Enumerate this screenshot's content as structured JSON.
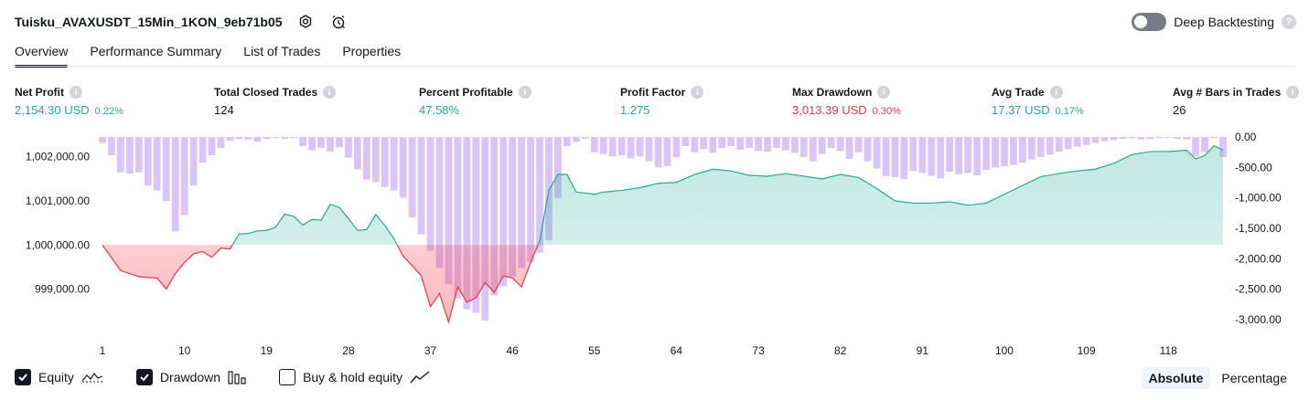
{
  "header": {
    "strategy_title": "Tuisku_AVAXUSDT_15Min_1KON_9eb71b05",
    "settings_icon": "settings-icon",
    "alert_icon": "alarm-icon",
    "deep_backtesting_label": "Deep Backtesting",
    "deep_backtesting_on": false,
    "help_mark": "?"
  },
  "tabs": [
    {
      "label": "Overview",
      "active": true
    },
    {
      "label": "Performance Summary",
      "active": false
    },
    {
      "label": "List of Trades",
      "active": false
    },
    {
      "label": "Properties",
      "active": false
    }
  ],
  "metrics": [
    {
      "label": "Net Profit",
      "value": "2,154.30 USD",
      "pct": "0.22%",
      "tone": "green"
    },
    {
      "label": "Total Closed Trades",
      "value": "124",
      "pct": "",
      "tone": "dark"
    },
    {
      "label": "Percent Profitable",
      "value": "47.58%",
      "pct": "",
      "tone": "green"
    },
    {
      "label": "Profit Factor",
      "value": "1.275",
      "pct": "",
      "tone": "green"
    },
    {
      "label": "Max Drawdown",
      "value": "3,013.39 USD",
      "pct": "0.30%",
      "tone": "red"
    },
    {
      "label": "Avg Trade",
      "value": "17.37 USD",
      "pct": "0.17%",
      "tone": "green"
    },
    {
      "label": "Avg # Bars in Trades",
      "value": "26",
      "pct": "",
      "tone": "dark"
    }
  ],
  "colors": {
    "profit": "#22ab94",
    "loss": "#f23645",
    "drawdown_bar": "#d7bff7",
    "equity_fill": "#d5efe9",
    "equity_fill_neg": "#fbd3d7"
  },
  "chart_data": {
    "type": "area",
    "x_ticks": [
      "1",
      "10",
      "19",
      "28",
      "37",
      "46",
      "55",
      "64",
      "73",
      "82",
      "91",
      "100",
      "109",
      "118"
    ],
    "left_axis": {
      "labels": [
        "1,002,000.00",
        "1,001,000.00",
        "1,000,000.00",
        "999,000.00"
      ],
      "ylim": [
        998100,
        1002450
      ],
      "baseline": 1000000
    },
    "right_axis": {
      "labels": [
        "0.00",
        "-500.00",
        "-1,000.00",
        "-1,500.00",
        "-2,000.00",
        "-2,500.00",
        "-3,000.00"
      ],
      "ylim": [
        -3150,
        0
      ]
    },
    "series": [
      {
        "name": "Equity",
        "x": [
          1,
          3,
          5,
          7,
          8,
          9,
          10,
          11,
          12,
          13,
          14,
          15,
          16,
          17,
          18,
          19,
          20,
          21,
          22,
          23,
          24,
          25,
          26,
          27,
          28,
          29,
          30,
          31,
          32,
          33,
          34,
          35,
          36,
          37,
          38,
          39,
          40,
          41,
          42,
          43,
          44,
          45,
          46,
          47,
          48,
          49,
          50,
          51,
          52,
          53,
          54,
          55,
          56,
          58,
          60,
          62,
          64,
          66,
          68,
          70,
          72,
          74,
          76,
          78,
          80,
          82,
          84,
          86,
          88,
          90,
          92,
          94,
          96,
          98,
          100,
          102,
          104,
          106,
          108,
          110,
          112,
          114,
          116,
          118,
          120,
          121,
          122,
          123,
          124
        ],
        "values": [
          1000000,
          999420,
          999280,
          999250,
          999000,
          999350,
          999600,
          999800,
          999850,
          999720,
          999930,
          999910,
          1000250,
          1000260,
          1000320,
          1000330,
          1000400,
          1000700,
          1000650,
          1000450,
          1000580,
          1000560,
          1000920,
          1000850,
          1000600,
          1000330,
          1000350,
          1000690,
          1000440,
          1000140,
          999750,
          999530,
          999300,
          998600,
          998900,
          998250,
          999050,
          998700,
          998800,
          999150,
          998920,
          999300,
          999250,
          999050,
          999600,
          1000100,
          1001250,
          1001600,
          1001600,
          1001200,
          1001180,
          1001150,
          1001200,
          1001240,
          1001300,
          1001400,
          1001420,
          1001600,
          1001720,
          1001680,
          1001580,
          1001560,
          1001620,
          1001560,
          1001500,
          1001600,
          1001530,
          1001280,
          1001000,
          1000950,
          1000950,
          1000980,
          1000900,
          1000950,
          1001150,
          1001350,
          1001550,
          1001620,
          1001680,
          1001720,
          1001850,
          1002050,
          1002120,
          1002120,
          1002150,
          1001950,
          1002030,
          1002250,
          1002154
        ]
      },
      {
        "name": "Drawdown",
        "x": [
          1,
          2,
          3,
          4,
          5,
          6,
          7,
          8,
          9,
          10,
          11,
          12,
          13,
          14,
          15,
          16,
          17,
          18,
          19,
          20,
          21,
          22,
          23,
          24,
          25,
          26,
          27,
          28,
          29,
          30,
          31,
          32,
          33,
          34,
          35,
          36,
          37,
          38,
          39,
          40,
          41,
          42,
          43,
          44,
          45,
          46,
          47,
          48,
          49,
          50,
          51,
          52,
          53,
          54,
          55,
          56,
          57,
          58,
          59,
          60,
          61,
          62,
          63,
          64,
          65,
          66,
          67,
          68,
          69,
          70,
          71,
          72,
          73,
          74,
          75,
          76,
          77,
          78,
          79,
          80,
          81,
          82,
          83,
          84,
          85,
          86,
          87,
          88,
          89,
          90,
          91,
          92,
          93,
          94,
          95,
          96,
          97,
          98,
          99,
          100,
          101,
          102,
          103,
          104,
          105,
          106,
          107,
          108,
          109,
          110,
          111,
          112,
          113,
          114,
          115,
          116,
          117,
          118,
          119,
          120,
          121,
          122,
          123,
          124
        ],
        "values": [
          -100,
          -300,
          -580,
          -600,
          -580,
          -800,
          -880,
          -1050,
          -1550,
          -1280,
          -800,
          -420,
          -300,
          -180,
          -60,
          -30,
          -40,
          -80,
          -30,
          -20,
          -30,
          -20,
          -150,
          -220,
          -180,
          -240,
          -170,
          -340,
          -530,
          -700,
          -740,
          -820,
          -880,
          -1000,
          -1320,
          -1600,
          -1870,
          -2150,
          -2420,
          -2650,
          -2830,
          -2890,
          -3013,
          -2600,
          -2450,
          -2300,
          -2150,
          -2050,
          -1900,
          -1700,
          -1000,
          -150,
          -80,
          -30,
          -250,
          -280,
          -320,
          -300,
          -350,
          -320,
          -400,
          -500,
          -480,
          -330,
          -150,
          -250,
          -200,
          -260,
          -180,
          -150,
          -210,
          -180,
          -230,
          -240,
          -180,
          -220,
          -260,
          -330,
          -400,
          -280,
          -180,
          -230,
          -360,
          -250,
          -400,
          -520,
          -640,
          -660,
          -690,
          -560,
          -590,
          -640,
          -680,
          -570,
          -610,
          -590,
          -630,
          -540,
          -500,
          -480,
          -460,
          -420,
          -370,
          -330,
          -290,
          -240,
          -200,
          -160,
          -130,
          -100,
          -70,
          -50,
          -30,
          -20,
          -40,
          -30,
          -20,
          -10,
          -30,
          -40,
          -320,
          -250,
          -20,
          -330
        ]
      }
    ]
  },
  "legend": [
    {
      "label": "Equity",
      "checked": true,
      "icon": "equity-line-icon"
    },
    {
      "label": "Drawdown",
      "checked": true,
      "icon": "drawdown-bars-icon"
    },
    {
      "label": "Buy & hold equity",
      "checked": false,
      "icon": "buy-hold-line-icon"
    }
  ],
  "modes": [
    {
      "label": "Absolute",
      "active": true
    },
    {
      "label": "Percentage",
      "active": false
    }
  ]
}
